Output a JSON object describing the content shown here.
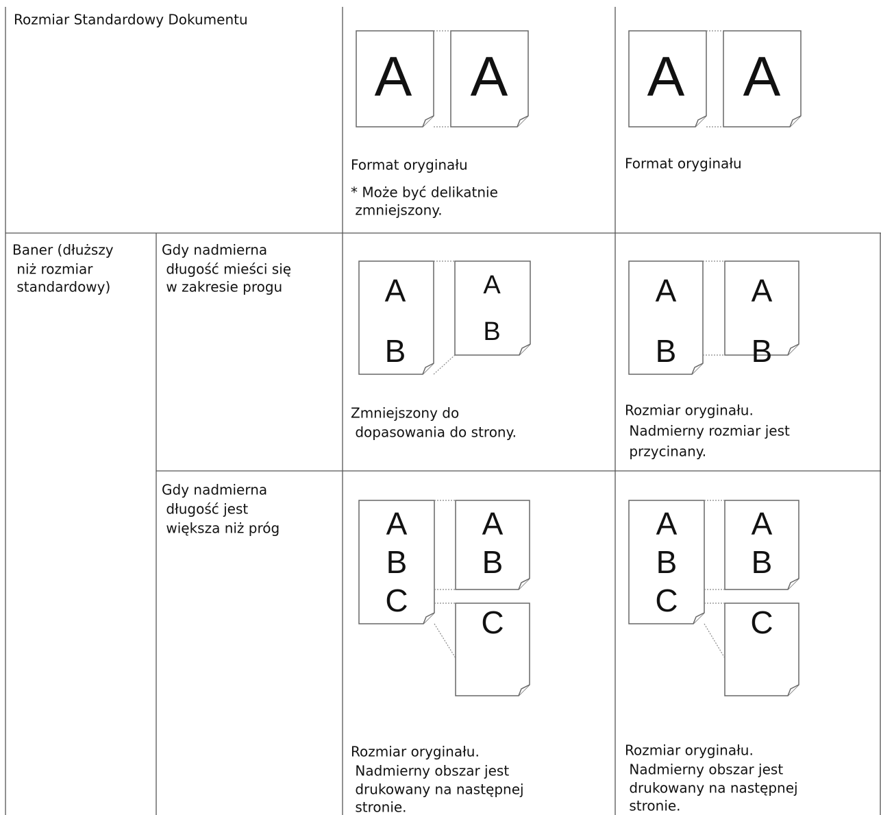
{
  "table": {
    "rows": [
      {
        "cells": [
          {
            "lines": [
              "Rozmiar Standardowy Dokumentu"
            ]
          },
          {
            "lines": [
              "Format oryginału",
              "* Może być delikatnie",
              " zmniejszony."
            ]
          },
          {
            "lines": [
              "Format oryginału"
            ]
          }
        ]
      },
      {
        "cells": [
          {
            "lines": [
              "Baner (dłuższy",
              " niż rozmiar",
              " standardowy)"
            ]
          },
          {
            "lines": [
              "Gdy nadmierna",
              " długość mieści się",
              " w zakresie progu"
            ]
          },
          {
            "lines": [
              "Zmniejszony do",
              " dopasowania do strony."
            ]
          },
          {
            "lines": [
              "Rozmiar oryginału.",
              " Nadmierny rozmiar jest",
              " przycinany."
            ]
          }
        ]
      },
      {
        "cells": [
          {
            "lines": [
              "Gdy nadmierna",
              " długość jest",
              " większa niż próg"
            ]
          },
          {
            "lines": [
              "Rozmiar oryginału.",
              " Nadmierny obszar jest",
              " drukowany na następnej",
              " stronie."
            ]
          },
          {
            "lines": [
              "Rozmiar oryginału.",
              " Nadmierny obszar jest",
              " drukowany na następnej",
              " stronie."
            ]
          }
        ]
      }
    ]
  },
  "illustration_letters": [
    "A",
    "B",
    "C"
  ]
}
